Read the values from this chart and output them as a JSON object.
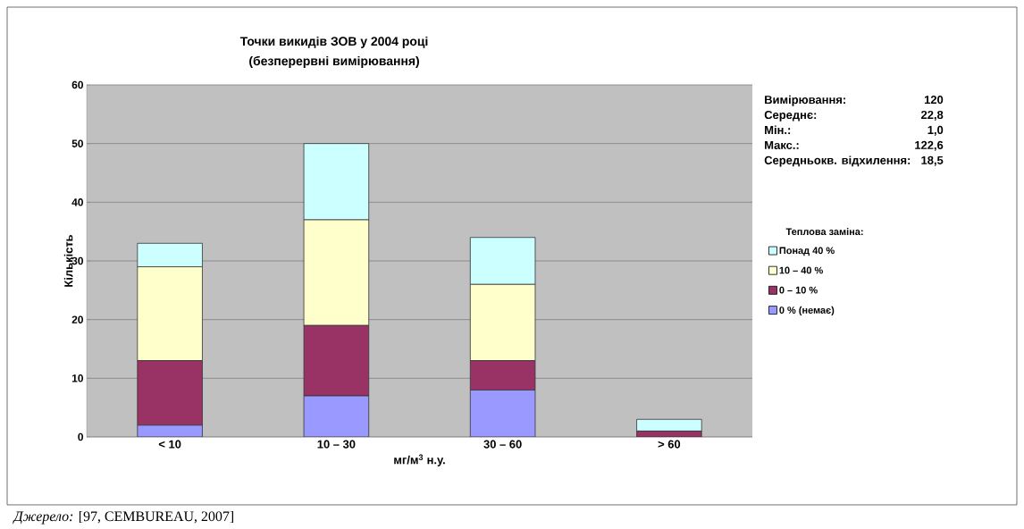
{
  "chart_data": {
    "type": "bar",
    "stacked": true,
    "title": "Точки викидів ЗОВ у 2004 році",
    "subtitle": "(безперервні вимірювання)",
    "xlabel": "мг/м$^{3}$ н.у.",
    "ylabel": "Кількість",
    "legend_title": "Теплова заміна:",
    "categories": [
      "< 10",
      "10 – 30",
      "30 – 60",
      "> 60"
    ],
    "series": [
      {
        "name": "0 % (немає)",
        "color": "#9999ff",
        "values": [
          2,
          7,
          8,
          0
        ]
      },
      {
        "name": "0 – 10 %",
        "color": "#993366",
        "values": [
          11,
          12,
          5,
          1
        ]
      },
      {
        "name": "10 – 40 %",
        "color": "#ffffcc",
        "values": [
          16,
          18,
          13,
          0
        ]
      },
      {
        "name": "Понад 40 %",
        "color": "#ccffff",
        "values": [
          4,
          13,
          8,
          2
        ]
      }
    ],
    "ylim": [
      0,
      60
    ],
    "yticks": [
      0,
      10,
      20,
      30,
      40,
      50,
      60
    ],
    "grid": "y",
    "legend": "right",
    "annotations": [
      "Вимірювання:",
      "120",
      "Середнє:",
      "22,8",
      "Мін.:",
      "1,0",
      "Макс.:",
      "122,6",
      "Середньокв. відхилення:",
      "18,5",
      "*Джерело:* [97, CEMBUREAU, 2007]"
    ]
  }
}
